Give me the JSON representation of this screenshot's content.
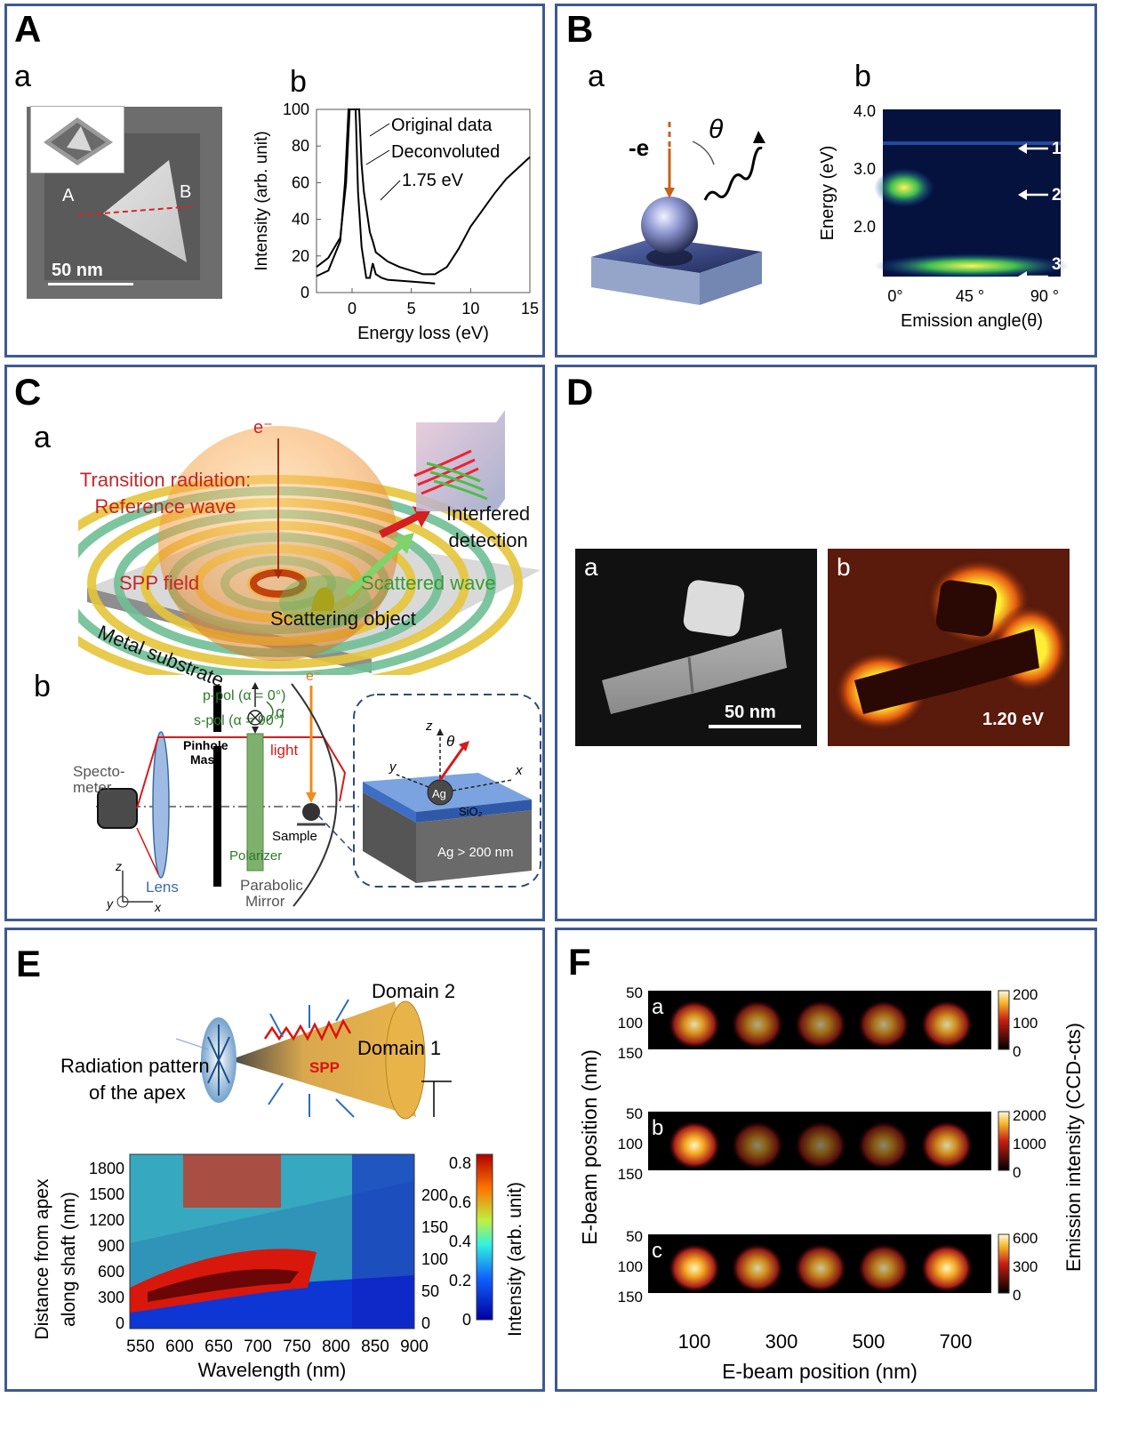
{
  "panels": {
    "A": {
      "label": "A",
      "a": {
        "label": "a",
        "pt_a": "A",
        "pt_b": "B",
        "scale_bar": "50 nm"
      },
      "b": {
        "label": "b",
        "legend": [
          "Original data",
          "Deconvoluted",
          "1.75 eV"
        ],
        "xlabel": "Energy loss (eV)",
        "ylabel": "Intensity (arb. unit)",
        "xticks": [
          "0",
          "5",
          "10",
          "15"
        ],
        "yticks": [
          "0",
          "20",
          "40",
          "60",
          "80",
          "100"
        ]
      }
    },
    "B": {
      "label": "B",
      "a": {
        "label": "a",
        "electron": "-e",
        "theta": "θ"
      },
      "b": {
        "label": "b",
        "ylabel": "Energy (eV)",
        "xlabel": "Emission angle(θ)",
        "yticks": [
          "4.0",
          "3.0",
          "2.0"
        ],
        "xticks": [
          "0°",
          "45 °",
          "90 °"
        ],
        "arrows": [
          "1",
          "2",
          "3"
        ]
      }
    },
    "C": {
      "label": "C",
      "a": {
        "label": "a",
        "electron": "e⁻",
        "transition_line1": "Transition radiation:",
        "transition_line2": "Reference wave",
        "interfered_line1": "Interfered",
        "interfered_line2": "detection",
        "spp_field": "SPP field",
        "scattered_wave": "Scattered wave",
        "scattering_object": "Scattering object",
        "metal_substrate": "Metal substrate"
      },
      "b": {
        "label": "b",
        "ppol": "p-pol (α = 0°)",
        "spol": "s-pol (α = 90°)",
        "pinhole": "Pinhole",
        "mask": "Mask",
        "alpha": "α",
        "electron": "e⁻",
        "spectro1": "Specto-",
        "spectro2": "meter",
        "light": "light",
        "sample": "Sample",
        "polarizer": "Polarizer",
        "parabolic1": "Parabolic",
        "parabolic2": "Mirror",
        "lens": "Lens",
        "ax_z": "z",
        "ax_y": "y",
        "ax_x": "x",
        "inset_z": "z",
        "inset_theta": "θ",
        "inset_y": "y",
        "inset_x": "x",
        "ag": "Ag",
        "sio2": "SiO₂",
        "ag_thick": "Ag > 200 nm"
      }
    },
    "D": {
      "label": "D",
      "a": {
        "label": "a",
        "scale_bar": "50 nm"
      },
      "b": {
        "label": "b",
        "energy": "1.20 eV"
      }
    },
    "E": {
      "label": "E",
      "domain2": "Domain 2",
      "domain1": "Domain 1",
      "radiation_line1": "Radiation pattern",
      "radiation_line2": "of the apex",
      "spp": "SPP",
      "ylabel_line1": "Distance from apex",
      "ylabel_line2": "along shaft (nm)",
      "xlabel": "Wavelength (nm)",
      "yticks_left": [
        "0",
        "300",
        "600",
        "900",
        "1200",
        "1500",
        "1800"
      ],
      "yticks_right": [
        "0",
        "50",
        "100",
        "150",
        "200"
      ],
      "xticks": [
        "550",
        "600",
        "650",
        "700",
        "750",
        "800",
        "850",
        "900"
      ],
      "cbar_ticks": [
        "0",
        "0.2",
        "0.4",
        "0.6",
        "0.8"
      ],
      "cbar_label": "Intensity (arb. unit)"
    },
    "F": {
      "label": "F",
      "sublabels": [
        "a",
        "b",
        "c"
      ],
      "yticks": [
        "50",
        "100",
        "150"
      ],
      "cbar_ticks": [
        [
          "200",
          "100",
          "0"
        ],
        [
          "2000",
          "1000",
          "0"
        ],
        [
          "600",
          "300",
          "0"
        ]
      ],
      "xticks": [
        "100",
        "300",
        "500",
        "700"
      ],
      "xlabel": "E-beam position (nm)",
      "ylabel": "E-beam position (nm)",
      "cbar_label": "Emission intensity (CCD-cts)"
    }
  },
  "chart_data": [
    {
      "type": "line",
      "title": "",
      "xlabel": "Energy loss (eV)",
      "ylabel": "Intensity (arb. unit)",
      "xlim": [
        -3,
        15
      ],
      "ylim": [
        0,
        100
      ],
      "series": [
        {
          "name": "Original data",
          "x": [
            -3,
            -2,
            -1,
            -0.5,
            -0.2,
            0.6,
            0.8,
            1,
            1.5,
            1.75,
            2,
            3,
            4,
            5,
            6,
            7,
            8,
            9,
            10,
            11,
            12,
            13,
            14,
            15
          ],
          "values": [
            14,
            19,
            30,
            60,
            100,
            100,
            70,
            55,
            33,
            28,
            22,
            17,
            14,
            12,
            10,
            10,
            14,
            24,
            36,
            45,
            54,
            62,
            68,
            74
          ]
        },
        {
          "name": "Deconvoluted",
          "x": [
            -3,
            -2,
            -1,
            -0.6,
            -0.3,
            0.3,
            0.5,
            0.8,
            1.2,
            1.5,
            1.75,
            2,
            2.5,
            3,
            5,
            7
          ],
          "values": [
            9,
            12,
            28,
            60,
            100,
            100,
            55,
            25,
            8,
            8,
            16,
            10,
            8,
            7,
            6,
            5
          ]
        }
      ],
      "annotations": [
        "1.75 eV"
      ]
    }
  ]
}
